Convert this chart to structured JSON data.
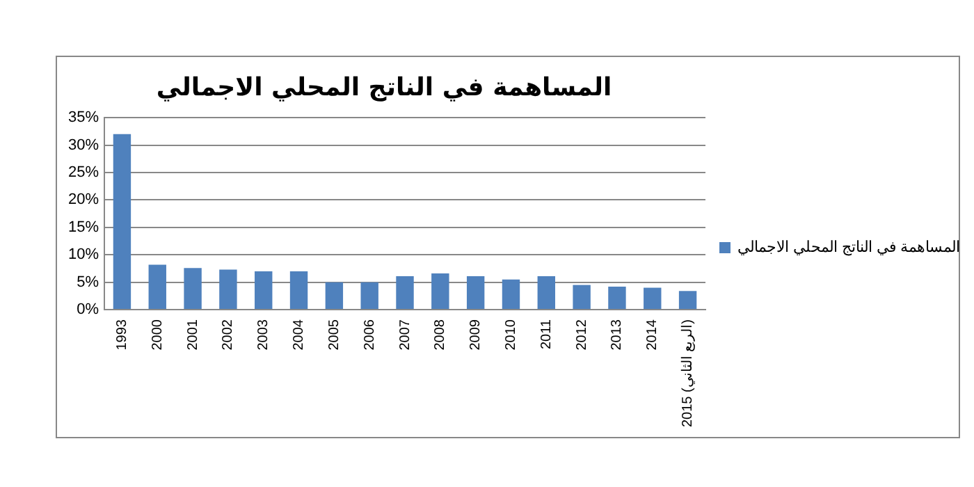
{
  "chart_data": {
    "type": "bar",
    "title": "المساهمة في الناتج المحلي الاجمالي",
    "categories": [
      "1993",
      "2000",
      "2001",
      "2002",
      "2003",
      "2004",
      "2005",
      "2006",
      "2007",
      "2008",
      "2009",
      "2010",
      "2011",
      "2012",
      "2013",
      "2014",
      "2015 (الربع الثاني)"
    ],
    "series": [
      {
        "name": "المساهمة في الناتج المحلي الاجمالي",
        "color": "#4f81bd",
        "values": [
          32,
          8.2,
          7.6,
          7.3,
          7,
          7,
          5,
          5,
          6.1,
          6.6,
          6.1,
          5.5,
          6.1,
          4.5,
          4.2,
          4,
          3.4
        ]
      }
    ],
    "ylim": [
      0,
      35
    ],
    "yticks": [
      {
        "value": 0,
        "label": "0%"
      },
      {
        "value": 5,
        "label": "5%"
      },
      {
        "value": 10,
        "label": "10%"
      },
      {
        "value": 15,
        "label": "15%"
      },
      {
        "value": 20,
        "label": "20%"
      },
      {
        "value": 25,
        "label": "25%"
      },
      {
        "value": 30,
        "label": "30%"
      },
      {
        "value": 35,
        "label": "35%"
      }
    ],
    "grid": "y",
    "legend": "right"
  }
}
